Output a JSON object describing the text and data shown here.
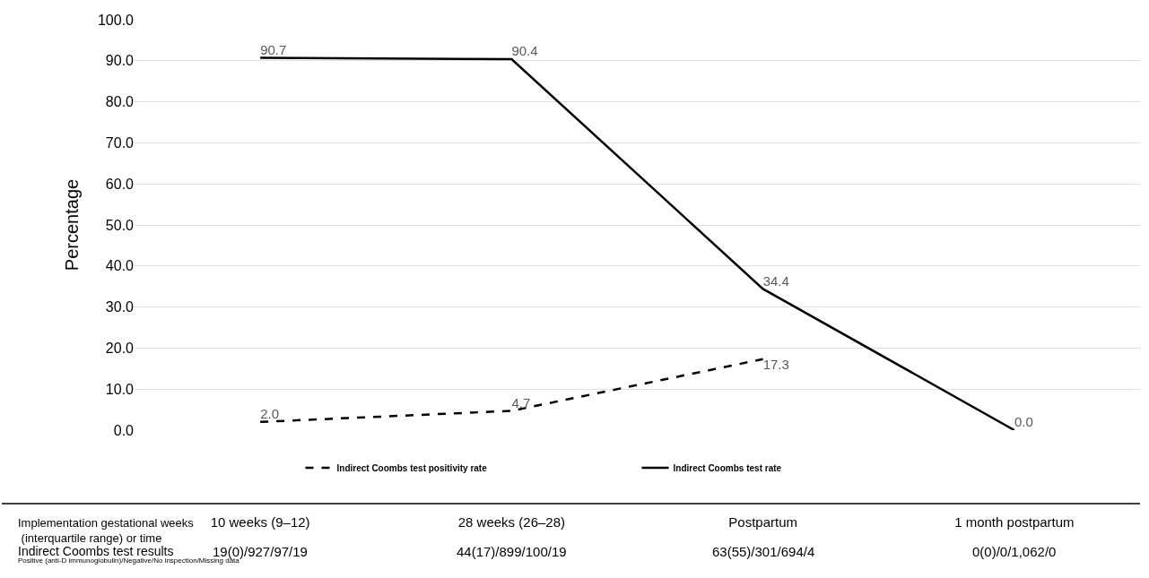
{
  "chart_data": {
    "type": "line",
    "ylabel": "Percentage",
    "categories": [
      "10 weeks (9–12)",
      "28 weeks (26–28)",
      "Postpartum",
      "1 month postpartum"
    ],
    "series": [
      {
        "name": "Indirect Coombs test positivity rate",
        "color": "#000000",
        "line_style": "dashed",
        "values": [
          2.0,
          4.7,
          17.3,
          null
        ],
        "value_labels": [
          "2.0",
          "4.7",
          "17.3",
          null
        ]
      },
      {
        "name": "Indirect Coombs test rate",
        "color": "#000000",
        "line_style": "solid",
        "values": [
          90.7,
          90.4,
          34.4,
          0.0
        ],
        "value_labels": [
          "90.7",
          "90.4",
          "34.4",
          "0.0"
        ]
      }
    ],
    "ylim": [
      0,
      100
    ],
    "yticks": [
      {
        "value": 0,
        "label": "0.0"
      },
      {
        "value": 10,
        "label": "10.0"
      },
      {
        "value": 20,
        "label": "20.0"
      },
      {
        "value": 30,
        "label": "30.0"
      },
      {
        "value": 40,
        "label": "40.0"
      },
      {
        "value": 50,
        "label": "50.0"
      },
      {
        "value": 60,
        "label": "60.0"
      },
      {
        "value": 70,
        "label": "70.0"
      },
      {
        "value": 80,
        "label": "80.0"
      },
      {
        "value": 90,
        "label": "90.0"
      },
      {
        "value": 100,
        "label": "100.0"
      }
    ],
    "grid": "y",
    "legend": "bottom",
    "marker": "none",
    "annotations": [
      "Implementation gestational weeks\n (interquartile range) or time",
      "Indirect Coombs test results",
      "Positive (anti-D immunoglobulin)/Negative/No inspection/Missing data",
      "19(0)/927/97/19",
      "44(17)/899/100/19",
      "63(55)/301/694/4",
      "0(0)/0/1,062/0"
    ]
  }
}
